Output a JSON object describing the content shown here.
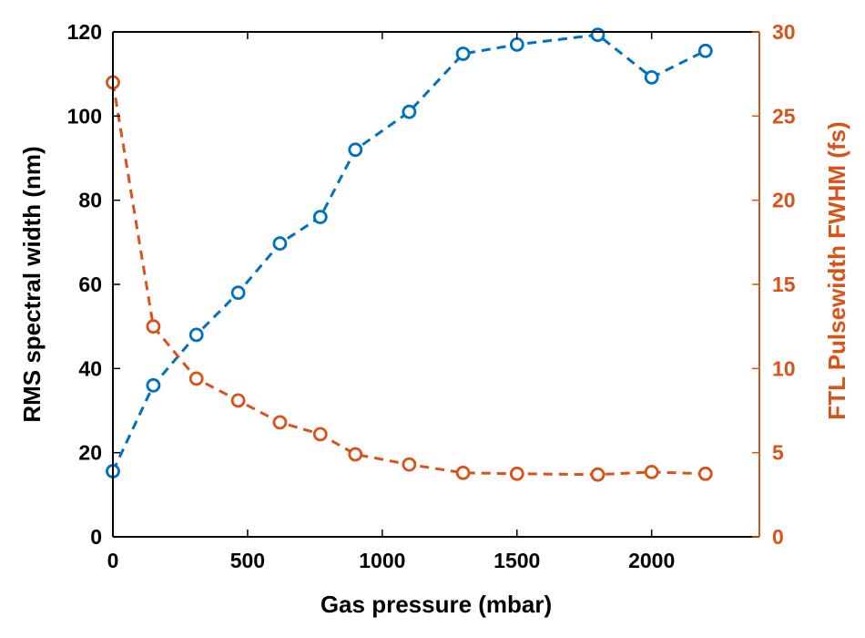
{
  "chart_data": {
    "type": "line",
    "title": "",
    "xlabel": "Gas pressure (mbar)",
    "ylabel": "RMS spectral width (nm)",
    "y2label": "FTL Pulsewidth FWHM (fs)",
    "xlim": [
      0,
      2400
    ],
    "ylim": [
      0,
      120
    ],
    "y2lim": [
      0,
      30
    ],
    "xticks": [
      0,
      500,
      1000,
      1500,
      2000
    ],
    "xtick_labels": [
      "0",
      "500",
      "1000",
      "1500",
      "2000"
    ],
    "yticks": [
      0,
      20,
      40,
      60,
      80,
      100,
      120
    ],
    "ytick_labels": [
      "0",
      "20",
      "40",
      "60",
      "80",
      "100",
      "120"
    ],
    "y2ticks": [
      0,
      5,
      10,
      15,
      20,
      25,
      30
    ],
    "y2tick_labels": [
      "0",
      "5",
      "10",
      "15",
      "20",
      "25",
      "30"
    ],
    "grid": false,
    "x": [
      0,
      150,
      310,
      465,
      620,
      770,
      900,
      1100,
      1300,
      1500,
      1800,
      2000,
      2200
    ],
    "series": [
      {
        "axis": "left",
        "color": "#0072BD",
        "line_style": "dashed",
        "marker": "circle",
        "values": [
          15.6,
          36,
          48,
          58,
          69.7,
          76,
          92,
          101,
          114.8,
          117,
          119.3,
          109.2,
          115.5
        ]
      },
      {
        "axis": "right",
        "color": "#D95319",
        "line_style": "dashed",
        "marker": "circle",
        "values": [
          27,
          12.5,
          9.4,
          8.1,
          6.8,
          6.1,
          4.9,
          4.3,
          3.8,
          3.75,
          3.7,
          3.85,
          3.75
        ]
      }
    ],
    "colors": {
      "left_axis": "#000000",
      "right_axis": "#D95319"
    }
  }
}
